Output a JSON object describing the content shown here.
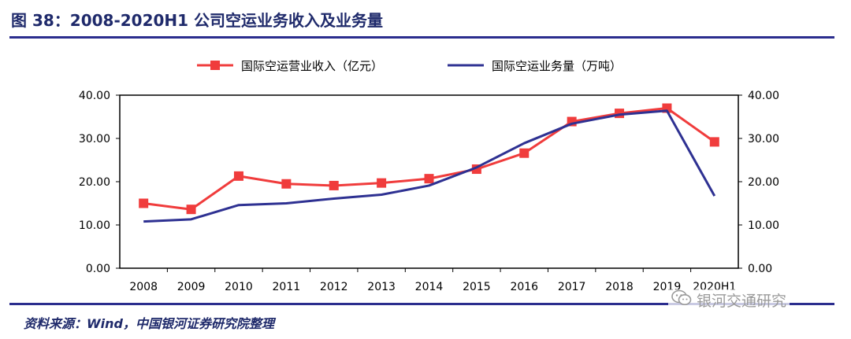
{
  "figure": {
    "title": "图 38：2008-2020H1 公司空运业务收入及业务量",
    "source": "资料来源：Wind，中国银河证券研究院整理",
    "watermark": "银河交通研究",
    "watermark_icon": "wechat-icon"
  },
  "chart_data": {
    "type": "line",
    "categories": [
      "2008",
      "2009",
      "2010",
      "2011",
      "2012",
      "2013",
      "2014",
      "2015",
      "2016",
      "2017",
      "2018",
      "2019",
      "2020H1"
    ],
    "series": [
      {
        "name": "国际空运营业收入（亿元）",
        "axis": "left",
        "color": "#f03c3c",
        "marker": "square",
        "values": [
          15.0,
          13.6,
          21.3,
          19.5,
          19.1,
          19.7,
          20.7,
          22.9,
          26.6,
          33.9,
          35.8,
          37.0,
          29.2
        ]
      },
      {
        "name": "国际空运业务量（万吨）",
        "axis": "right",
        "color": "#2e3192",
        "marker": "none",
        "values": [
          10.8,
          11.3,
          14.6,
          15.0,
          16.1,
          17.0,
          19.1,
          23.3,
          28.9,
          33.4,
          35.5,
          36.4,
          16.7
        ]
      }
    ],
    "yleft": {
      "ylim": [
        0,
        40
      ],
      "ticks": [
        "0.00",
        "10.00",
        "20.00",
        "30.00",
        "40.00"
      ]
    },
    "yright": {
      "ylim": [
        0,
        40
      ],
      "ticks": [
        "0.00",
        "10.00",
        "20.00",
        "30.00",
        "40.00"
      ]
    },
    "grid": false,
    "legend": "top"
  }
}
